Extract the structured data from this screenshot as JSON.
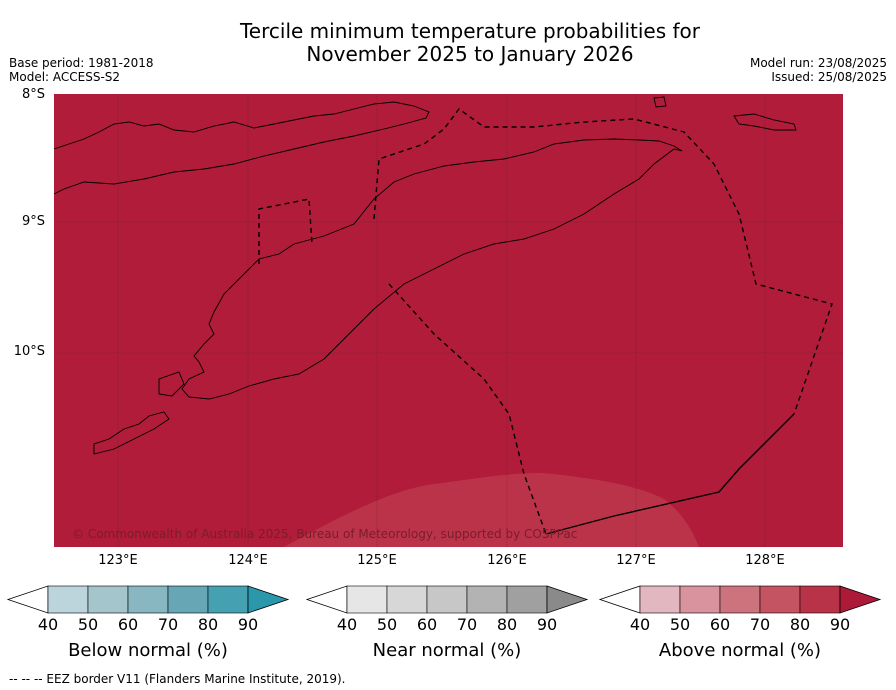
{
  "title_line1": "Tercile minimum temperature probabilities for",
  "title_line2": "November 2025 to January 2026",
  "meta_left": {
    "base_period": "Base period: 1981-2018",
    "model": "Model: ACCESS-S2"
  },
  "meta_right": {
    "model_run": "Model run: 23/08/2025",
    "issued": "Issued: 25/08/2025"
  },
  "lat_labels": [
    "8°S",
    "9°S",
    "10°S"
  ],
  "lon_labels": [
    "123°E",
    "124°E",
    "125°E",
    "126°E",
    "127°E",
    "128°E"
  ],
  "copyright": "© Commonwealth of Australia 2025, Bureau of Meteorology, supported by COSPPac",
  "colorbars": [
    {
      "label": "Below normal (%)",
      "ticks": [
        "40",
        "50",
        "60",
        "70",
        "80",
        "90"
      ],
      "colors": [
        "#ffffff",
        "#bcd4db",
        "#a5c5cc",
        "#89b7c1",
        "#67a6b4",
        "#45a0b2",
        "#2a98aa"
      ]
    },
    {
      "label": "Near normal (%)",
      "ticks": [
        "40",
        "50",
        "60",
        "70",
        "80",
        "90"
      ],
      "colors": [
        "#ffffff",
        "#e6e6e6",
        "#d7d7d7",
        "#c7c7c7",
        "#b3b3b3",
        "#a0a0a0",
        "#8a8a8a"
      ]
    },
    {
      "label": "Above normal (%)",
      "ticks": [
        "40",
        "50",
        "60",
        "70",
        "80",
        "90"
      ],
      "colors": [
        "#ffffff",
        "#e3b7bf",
        "#d9939e",
        "#cc737e",
        "#c45462",
        "#b93348",
        "#ad1a38"
      ]
    }
  ],
  "footer": "--  --  -- EEZ border V11 (Flanders Marine Institute, 2019).",
  "map_colors": {
    "dominant": "#b01c3a",
    "lighter": "#bb3349",
    "land": "#5ea5b4"
  }
}
